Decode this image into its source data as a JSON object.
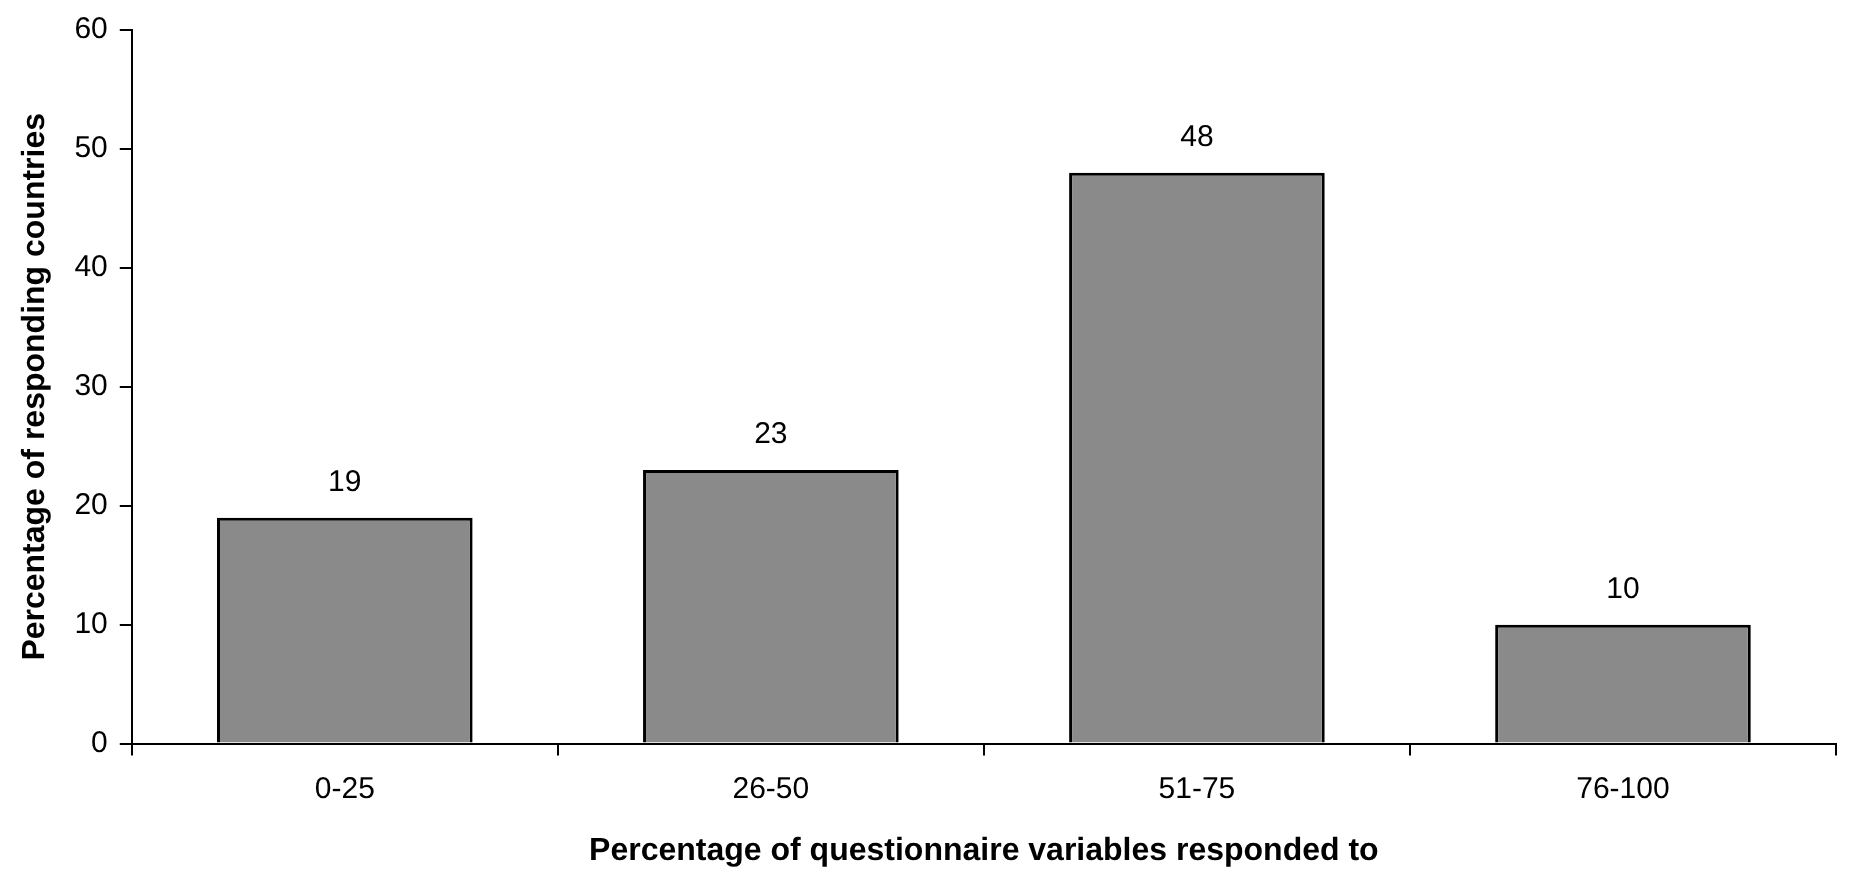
{
  "chart_data": {
    "type": "bar",
    "xlabel": "Percentage of questionnaire variables responded to",
    "ylabel": "Percentage of responding countries",
    "categories": [
      "0-25",
      "26-50",
      "51-75",
      "76-100"
    ],
    "values": [
      19,
      23,
      48,
      10
    ],
    "color": "#8a8a8a",
    "ylim": [
      0,
      60
    ],
    "yticks": [
      0,
      10,
      20,
      30,
      40,
      50,
      60
    ],
    "grid": false,
    "data_labels": true
  }
}
